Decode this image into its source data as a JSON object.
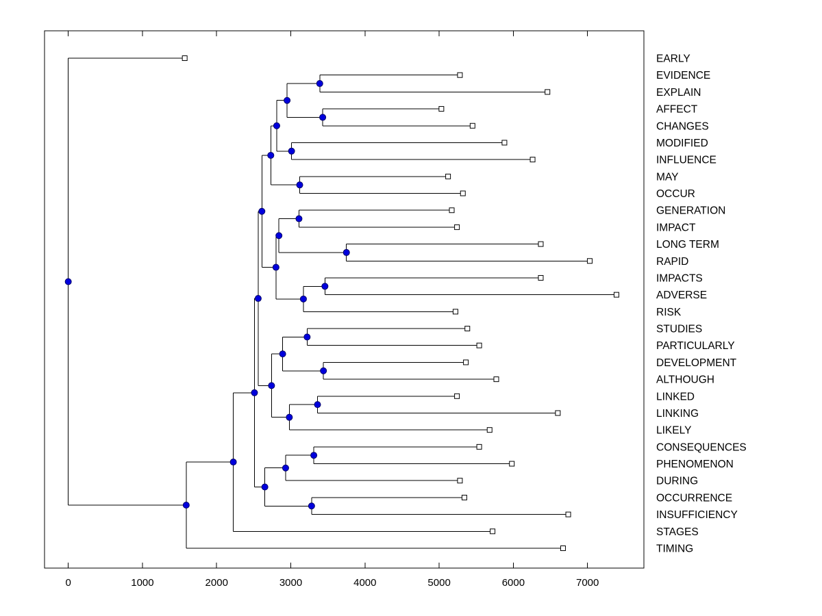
{
  "chart_data": {
    "type": "dendrogram",
    "orientation": "root-left-leaves-right",
    "title": "",
    "xlabel": "",
    "ylabel": "",
    "grid": false,
    "legend": null,
    "x_ticks": [
      0,
      1000,
      2000,
      3000,
      4000,
      5000,
      6000,
      7000
    ],
    "xlim": [
      -320,
      7760
    ],
    "markers": {
      "leaf": "open-square",
      "internal": "filled-circle"
    },
    "styles": {
      "background": "#ffffff",
      "axis_color": "#000000",
      "branch_color": "#000000",
      "text_color": "#000000",
      "internal_node_fill": "#0000dd",
      "internal_node_stroke": "#000066",
      "leaf_marker_fill": "#ffffff",
      "leaf_marker_stroke": "#000000"
    },
    "leaf_labels": [
      "EARLY",
      "EVIDENCE",
      "EXPLAIN",
      "AFFECT",
      "CHANGES",
      "MODIFIED",
      "INFLUENCE",
      "MAY",
      "OCCUR",
      "GENERATION",
      "IMPACT",
      "LONG TERM",
      "RAPID",
      "IMPACTS",
      "ADVERSE",
      "RISK",
      "STUDIES",
      "PARTICULARLY",
      "DEVELOPMENT",
      "ALTHOUGH",
      "LINKED",
      "LINKING",
      "LIKELY",
      "CONSEQUENCES",
      "PHENOMENON",
      "DURING",
      "OCCURRENCE",
      "INSUFFICIENCY",
      "STAGES",
      "TIMING"
    ],
    "tree": {
      "x": 0,
      "children": [
        {
          "label": "EARLY",
          "x": 1570
        },
        {
          "x": 1590,
          "children": [
            {
              "x": 2225,
              "children": [
                {
                  "x": 2510,
                  "children": [
                    {
                      "x": 2560,
                      "children": [
                        {
                          "x": 2610,
                          "children": [
                            {
                              "x": 2730,
                              "children": [
                                {
                                  "x": 2810,
                                  "children": [
                                    {
                                      "x": 2950,
                                      "children": [
                                        {
                                          "x": 3390,
                                          "children": [
                                            {
                                              "label": "EVIDENCE",
                                              "x": 5280
                                            },
                                            {
                                              "label": "EXPLAIN",
                                              "x": 6460
                                            }
                                          ]
                                        },
                                        {
                                          "x": 3430,
                                          "children": [
                                            {
                                              "label": "AFFECT",
                                              "x": 5030
                                            },
                                            {
                                              "label": "CHANGES",
                                              "x": 5450
                                            }
                                          ]
                                        }
                                      ]
                                    },
                                    {
                                      "x": 3010,
                                      "children": [
                                        {
                                          "label": "MODIFIED",
                                          "x": 5880
                                        },
                                        {
                                          "label": "INFLUENCE",
                                          "x": 6260
                                        }
                                      ]
                                    }
                                  ]
                                },
                                {
                                  "x": 3120,
                                  "children": [
                                    {
                                      "label": "MAY",
                                      "x": 5120
                                    },
                                    {
                                      "label": "OCCUR",
                                      "x": 5320
                                    }
                                  ]
                                }
                              ]
                            },
                            {
                              "x": 2800,
                              "children": [
                                {
                                  "x": 2840,
                                  "children": [
                                    {
                                      "x": 3110,
                                      "children": [
                                        {
                                          "label": "GENERATION",
                                          "x": 5170
                                        },
                                        {
                                          "label": "IMPACT",
                                          "x": 5240
                                        }
                                      ]
                                    },
                                    {
                                      "x": 3750,
                                      "children": [
                                        {
                                          "label": "LONG TERM",
                                          "x": 6370
                                        },
                                        {
                                          "label": "RAPID",
                                          "x": 7030
                                        }
                                      ]
                                    }
                                  ]
                                },
                                {
                                  "x": 3170,
                                  "children": [
                                    {
                                      "x": 3460,
                                      "children": [
                                        {
                                          "label": "IMPACTS",
                                          "x": 6370
                                        },
                                        {
                                          "label": "ADVERSE",
                                          "x": 7390
                                        }
                                      ]
                                    },
                                    {
                                      "label": "RISK",
                                      "x": 5220
                                    }
                                  ]
                                }
                              ]
                            }
                          ]
                        },
                        {
                          "x": 2740,
                          "children": [
                            {
                              "x": 2890,
                              "children": [
                                {
                                  "x": 3220,
                                  "children": [
                                    {
                                      "label": "STUDIES",
                                      "x": 5380
                                    },
                                    {
                                      "label": "PARTICULARLY",
                                      "x": 5540
                                    }
                                  ]
                                },
                                {
                                  "x": 3440,
                                  "children": [
                                    {
                                      "label": "DEVELOPMENT",
                                      "x": 5360
                                    },
                                    {
                                      "label": "ALTHOUGH",
                                      "x": 5770
                                    }
                                  ]
                                }
                              ]
                            },
                            {
                              "x": 2980,
                              "children": [
                                {
                                  "x": 3360,
                                  "children": [
                                    {
                                      "label": "LINKED",
                                      "x": 5240
                                    },
                                    {
                                      "label": "LINKING",
                                      "x": 6600
                                    }
                                  ]
                                },
                                {
                                  "label": "LIKELY",
                                  "x": 5680
                                }
                              ]
                            }
                          ]
                        }
                      ]
                    },
                    {
                      "x": 2650,
                      "children": [
                        {
                          "x": 2930,
                          "children": [
                            {
                              "x": 3310,
                              "children": [
                                {
                                  "label": "CONSEQUENCES",
                                  "x": 5540
                                },
                                {
                                  "label": "PHENOMENON",
                                  "x": 5980
                                }
                              ]
                            },
                            {
                              "label": "DURING",
                              "x": 5280
                            }
                          ]
                        },
                        {
                          "x": 3280,
                          "children": [
                            {
                              "label": "OCCURRENCE",
                              "x": 5340
                            },
                            {
                              "label": "INSUFFICIENCY",
                              "x": 6740
                            }
                          ]
                        }
                      ]
                    }
                  ]
                },
                {
                  "label": "STAGES",
                  "x": 5720
                }
              ]
            },
            {
              "label": "TIMING",
              "x": 6670
            }
          ]
        }
      ]
    }
  }
}
